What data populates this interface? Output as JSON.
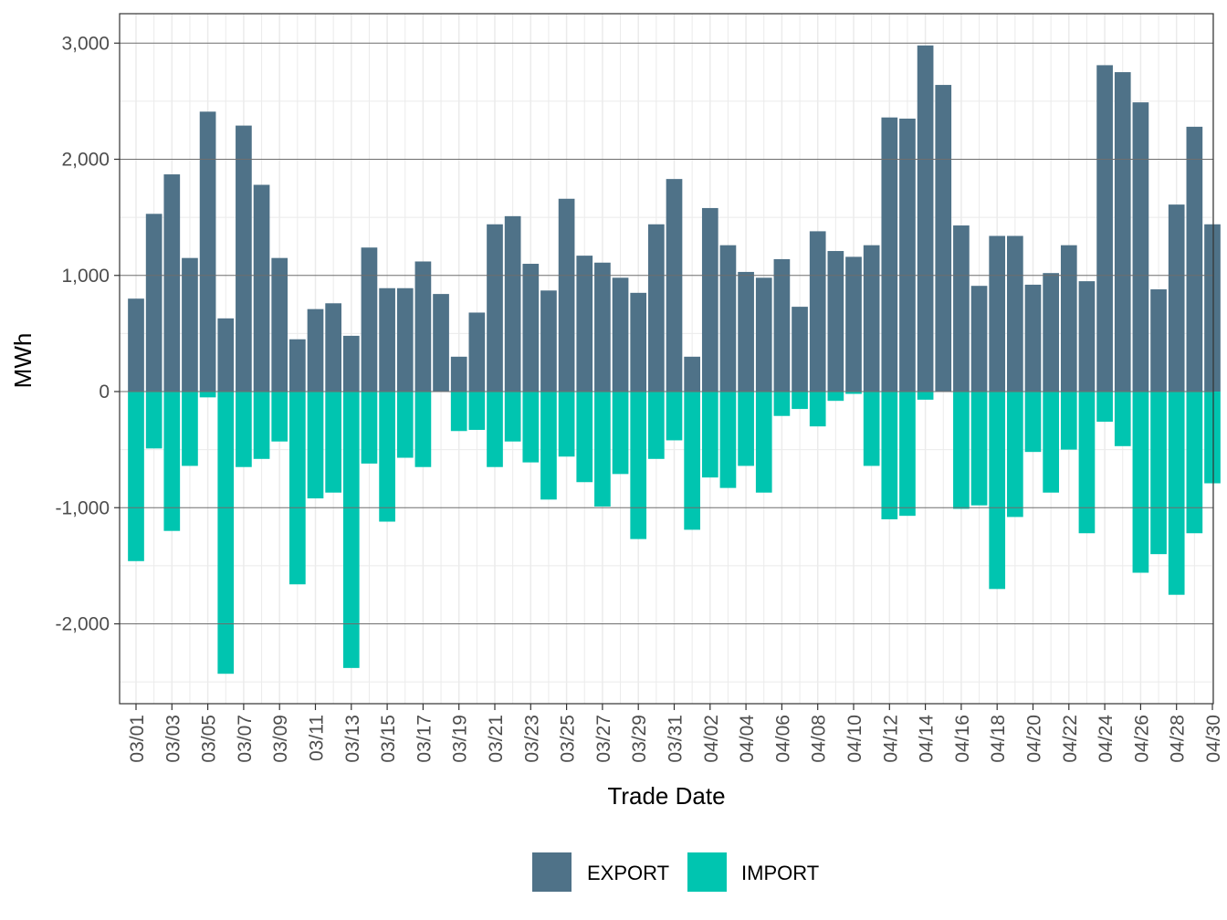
{
  "chart_data": {
    "type": "bar",
    "title": "",
    "xlabel": "Trade Date",
    "ylabel": "MWh",
    "ylim": [
      -2500,
      3000
    ],
    "yticks": [
      3000,
      2000,
      1000,
      0,
      -1000,
      -2000
    ],
    "ytick_labels": [
      "3,000",
      "2,000",
      "1,000",
      "0",
      "-1,000",
      "-2,000"
    ],
    "grid": true,
    "legend_position": "bottom",
    "categories": [
      "03/01",
      "03/02",
      "03/03",
      "03/04",
      "03/05",
      "03/06",
      "03/07",
      "03/08",
      "03/09",
      "03/10",
      "03/11",
      "03/12",
      "03/13",
      "03/14",
      "03/15",
      "03/16",
      "03/17",
      "03/18",
      "03/19",
      "03/20",
      "03/21",
      "03/22",
      "03/23",
      "03/24",
      "03/25",
      "03/26",
      "03/27",
      "03/28",
      "03/29",
      "03/30",
      "03/31",
      "04/01",
      "04/02",
      "04/03",
      "04/04",
      "04/05",
      "04/06",
      "04/07",
      "04/08",
      "04/09",
      "04/10",
      "04/11",
      "04/12",
      "04/13",
      "04/14",
      "04/15",
      "04/16",
      "04/17",
      "04/18",
      "04/19",
      "04/20",
      "04/21",
      "04/22",
      "04/23",
      "04/24",
      "04/25",
      "04/26",
      "04/27",
      "04/28",
      "04/29",
      "04/30"
    ],
    "tick_labels": [
      "03/01",
      "03/03",
      "03/05",
      "03/07",
      "03/09",
      "03/11",
      "03/13",
      "03/15",
      "03/17",
      "03/19",
      "03/21",
      "03/23",
      "03/25",
      "03/27",
      "03/29",
      "03/31",
      "04/02",
      "04/04",
      "04/06",
      "04/08",
      "04/10",
      "04/12",
      "04/14",
      "04/16",
      "04/18",
      "04/20",
      "04/22",
      "04/24",
      "04/26",
      "04/28",
      "04/30"
    ],
    "series": [
      {
        "name": "EXPORT",
        "color": "#4f7288",
        "values": [
          800,
          1530,
          1870,
          1150,
          2410,
          630,
          2290,
          1780,
          1150,
          450,
          710,
          760,
          480,
          1240,
          890,
          890,
          1120,
          840,
          300,
          680,
          1440,
          1510,
          1100,
          870,
          1660,
          1170,
          1110,
          980,
          850,
          1440,
          1830,
          300,
          1580,
          1260,
          1030,
          980,
          1140,
          730,
          1380,
          1210,
          1160,
          1260,
          2360,
          2350,
          2980,
          2640,
          1430,
          910,
          1340,
          1340,
          920,
          1020,
          1260,
          950,
          2810,
          2750,
          2490,
          880,
          1610,
          2280,
          1440
        ]
      },
      {
        "name": "IMPORT",
        "color": "#00c5b0",
        "values": [
          -1460,
          -490,
          -1200,
          -640,
          -50,
          -2430,
          -650,
          -580,
          -430,
          -1660,
          -920,
          -870,
          -2380,
          -620,
          -1120,
          -570,
          -650,
          0,
          -340,
          -330,
          -650,
          -430,
          -610,
          -930,
          -560,
          -780,
          -990,
          -710,
          -1270,
          -580,
          -420,
          -1190,
          -740,
          -830,
          -640,
          -870,
          -210,
          -150,
          -300,
          -80,
          -20,
          -640,
          -1100,
          -1070,
          -70,
          0,
          -1010,
          -980,
          -1700,
          -1080,
          -520,
          -870,
          -500,
          -1220,
          -260,
          -470,
          -1560,
          -1400,
          -1750,
          -1220,
          -790
        ]
      }
    ]
  }
}
